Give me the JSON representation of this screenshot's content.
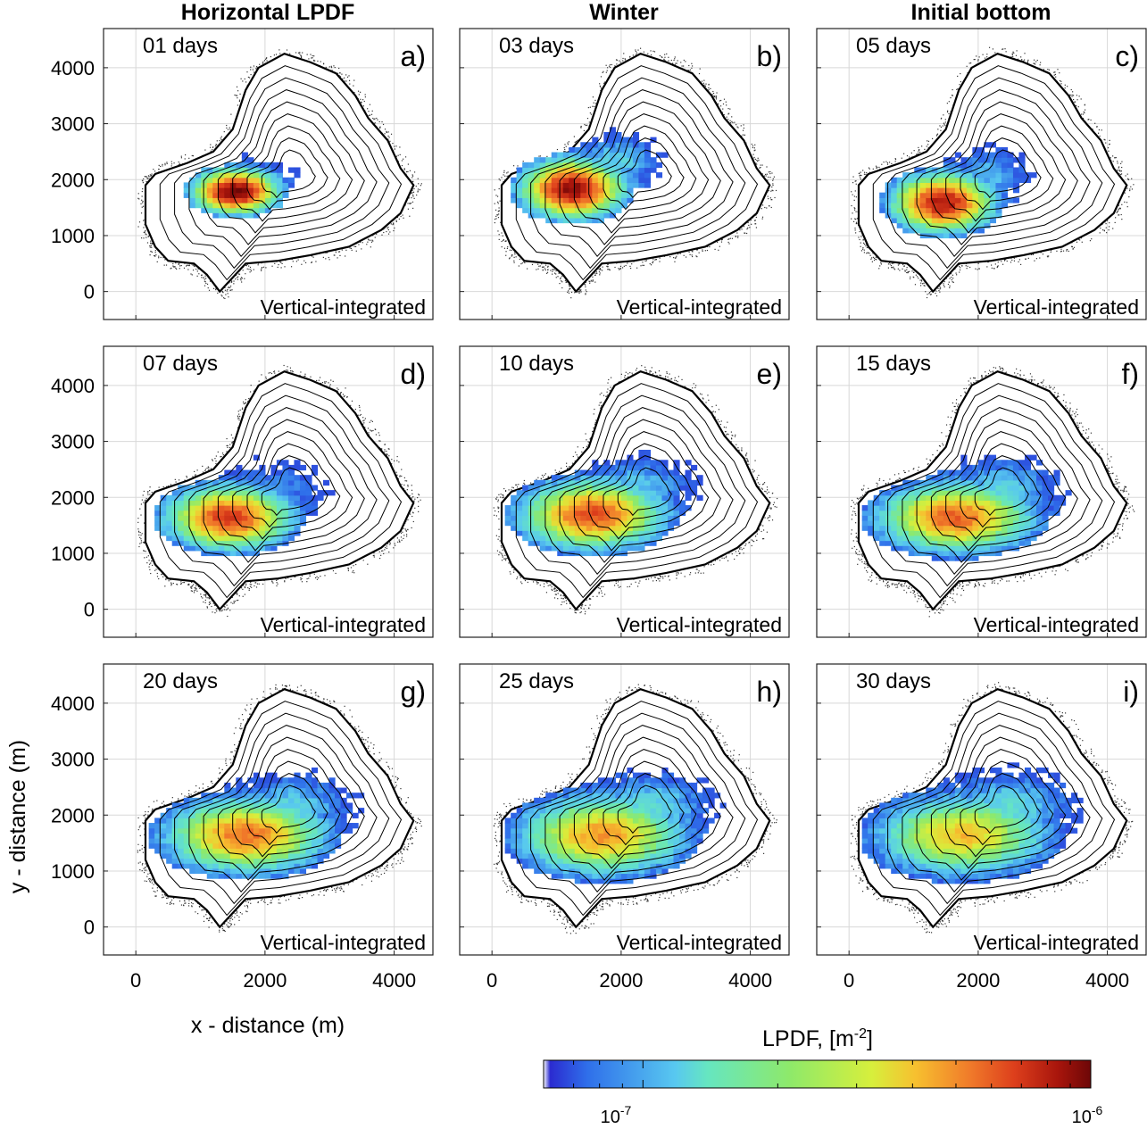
{
  "column_titles": [
    "Horizontal LPDF",
    "Winter",
    "Initial bottom"
  ],
  "panels": [
    {
      "letter": "a)",
      "time": "01 days",
      "note": "Vertical-integrated",
      "cx": 1500,
      "cy": 1750,
      "rx": 750,
      "ry": 450,
      "peak": 1.0,
      "ext": 0.0
    },
    {
      "letter": "b)",
      "time": "03 days",
      "note": "Vertical-integrated",
      "cx": 1200,
      "cy": 1800,
      "rx": 900,
      "ry": 600,
      "peak": 0.95,
      "ext": 0.55
    },
    {
      "letter": "c)",
      "time": "05 days",
      "note": "Vertical-integrated",
      "cx": 1400,
      "cy": 1550,
      "rx": 900,
      "ry": 600,
      "peak": 0.9,
      "ext": 0.45
    },
    {
      "letter": "d)",
      "time": "07 days",
      "note": "Vertical-integrated",
      "cx": 1400,
      "cy": 1600,
      "rx": 1100,
      "ry": 650,
      "peak": 0.82,
      "ext": 0.35
    },
    {
      "letter": "e)",
      "time": "10 days",
      "note": "Vertical-integrated",
      "cx": 1500,
      "cy": 1650,
      "rx": 1250,
      "ry": 700,
      "peak": 0.78,
      "ext": 0.5
    },
    {
      "letter": "f)",
      "time": "15 days",
      "note": "Vertical-integrated",
      "cx": 1600,
      "cy": 1600,
      "rx": 1350,
      "ry": 700,
      "peak": 0.74,
      "ext": 0.55
    },
    {
      "letter": "g)",
      "time": "20 days",
      "note": "Vertical-integrated",
      "cx": 1650,
      "cy": 1600,
      "rx": 1400,
      "ry": 750,
      "peak": 0.72,
      "ext": 0.55
    },
    {
      "letter": "h)",
      "time": "25 days",
      "note": "Vertical-integrated",
      "cx": 1650,
      "cy": 1600,
      "rx": 1450,
      "ry": 800,
      "peak": 0.66,
      "ext": 0.6
    },
    {
      "letter": "i)",
      "time": "30 days",
      "note": "Vertical-integrated",
      "cx": 1700,
      "cy": 1600,
      "rx": 1500,
      "ry": 800,
      "peak": 0.6,
      "ext": 0.6
    }
  ],
  "chart_data": {
    "type": "heatmap",
    "title": "",
    "xlabel": "x - distance (m)",
    "ylabel": "y - distance (m)",
    "xlim": [
      -500,
      4600
    ],
    "ylim": [
      -500,
      4700
    ],
    "xticks": [
      0,
      2000,
      4000
    ],
    "yticks": [
      0,
      1000,
      2000,
      3000,
      4000
    ],
    "xtick_labels": [
      "0",
      "2000",
      "4000"
    ],
    "ytick_labels": [
      "0",
      "1000",
      "2000",
      "3000",
      "4000"
    ],
    "grid": true,
    "colorbar": {
      "label_main": "LPDF, [m",
      "label_sup": "-2",
      "label_end": "]",
      "tick_base": "10",
      "ticks": [
        {
          "value": 1e-07,
          "exp": "-7"
        },
        {
          "value": 1e-06,
          "exp": "-6"
        }
      ],
      "range": [
        6e-08,
        1e-06
      ],
      "colormap": "jet-like",
      "colors": [
        "#ffffff",
        "#2b2bd0",
        "#2f6fea",
        "#58c8f0",
        "#66e6c0",
        "#8ee96a",
        "#d7ef3c",
        "#f7c02f",
        "#f07a2a",
        "#dd3f1c",
        "#a8150c",
        "#6d0707"
      ]
    }
  }
}
